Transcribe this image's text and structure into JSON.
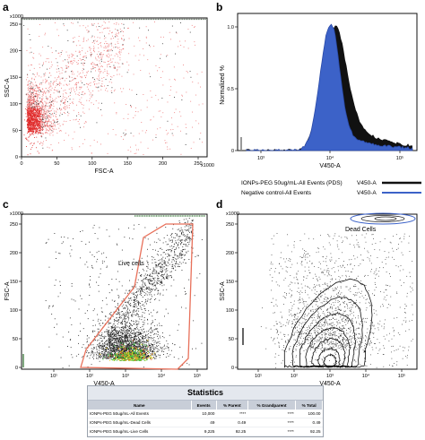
{
  "panels": {
    "a": {
      "letter": "a",
      "type": "scatter",
      "xlabel": "FSC-A",
      "ylabel": "SSC-A",
      "x_mult": "x1000",
      "y_mult": "x1000",
      "xlim": [
        0,
        262
      ],
      "ylim": [
        0,
        262
      ],
      "x_ticks": [
        "0",
        "50",
        "100",
        "150",
        "200",
        "250"
      ],
      "y_ticks": [
        "0",
        "50",
        "100",
        "150",
        "200",
        "250"
      ],
      "point_color": "#e23a3a"
    },
    "b": {
      "letter": "b",
      "type": "histogram",
      "xlabel": "V450-A",
      "ylabel": "Normalized %",
      "ylim": [
        0,
        1.1
      ],
      "xscale": "log",
      "x_ticks": [
        "10³",
        "10⁴",
        "10⁵"
      ],
      "y_ticks": [
        "0",
        "0.5",
        "1.0"
      ],
      "series": [
        {
          "name": "IONPs-PEG 50ug/mL-All Events (PDS)",
          "parameter": "V450-A",
          "color": "#111111"
        },
        {
          "name": "Negative control-All Events",
          "parameter": "V450-A",
          "color": "#3c62c8"
        }
      ]
    },
    "c": {
      "letter": "c",
      "type": "scatter",
      "xlabel": "V450-A",
      "ylabel": "FSC-A",
      "y_mult": "x1000",
      "xscale": "log",
      "ylim": [
        0,
        262
      ],
      "x_ticks": [
        "10¹",
        "10²",
        "10³",
        "10⁴",
        "10⁵"
      ],
      "y_ticks": [
        "0",
        "50",
        "100",
        "150",
        "200",
        "250"
      ],
      "gate_label": "Live cells",
      "gate_color": "#e8705a"
    },
    "d": {
      "letter": "d",
      "type": "contour",
      "xlabel": "V450-A",
      "ylabel": "SSC-A",
      "y_mult": "x1000",
      "xscale": "log",
      "ylim": [
        0,
        262
      ],
      "x_ticks": [
        "10¹",
        "10²",
        "10³",
        "10⁴",
        "10⁵"
      ],
      "y_ticks": [
        "0",
        "50",
        "100",
        "150",
        "200",
        "250"
      ],
      "gate_label": "Dead Cells",
      "gate_color": "#3c62c8"
    }
  },
  "statistics": {
    "title": "Statistics",
    "columns": [
      "Name",
      "Events",
      "% Parent",
      "% Grandparent",
      "% Total"
    ],
    "rows": [
      {
        "name": "IONPs-PEG 50ug/mL-All Events",
        "events": "10,000",
        "parent": "****",
        "grandparent": "****",
        "total": "100.00"
      },
      {
        "name": "IONPs-PEG 50ug/mL-Dead Cells",
        "events": "49",
        "parent": "0.49",
        "grandparent": "****",
        "total": "0.49"
      },
      {
        "name": "IONPs-PEG 50ug/mL-Live Cells",
        "events": "9,225",
        "parent": "92.25",
        "grandparent": "****",
        "total": "92.25"
      }
    ]
  },
  "chart_data": [
    {
      "type": "scatter",
      "xlabel": "FSC-A",
      "ylabel": "SSC-A",
      "xlim": [
        0,
        262
      ],
      "ylim": [
        0,
        262
      ],
      "description_values": {
        "dense_center": [
          12,
          50
        ],
        "spread_max_x": 262,
        "spread_max_y": 262
      }
    },
    {
      "type": "line",
      "xlabel": "V450-A",
      "ylabel": "Normalized %",
      "x": [
        200,
        400,
        600,
        800,
        1000,
        1500,
        2000,
        3000,
        5000,
        10000,
        20000
      ],
      "series": [
        {
          "name": "IONPs-PEG 50ug/mL-All Events (PDS)",
          "values": [
            0.0,
            0.15,
            0.5,
            0.85,
            0.95,
            0.7,
            0.5,
            0.38,
            0.2,
            0.05,
            0.0
          ]
        },
        {
          "name": "Negative control-All Events",
          "values": [
            0.0,
            0.18,
            0.55,
            0.92,
            1.0,
            0.62,
            0.4,
            0.27,
            0.12,
            0.03,
            0.0
          ]
        }
      ],
      "ylim": [
        0,
        1.1
      ]
    }
  ]
}
